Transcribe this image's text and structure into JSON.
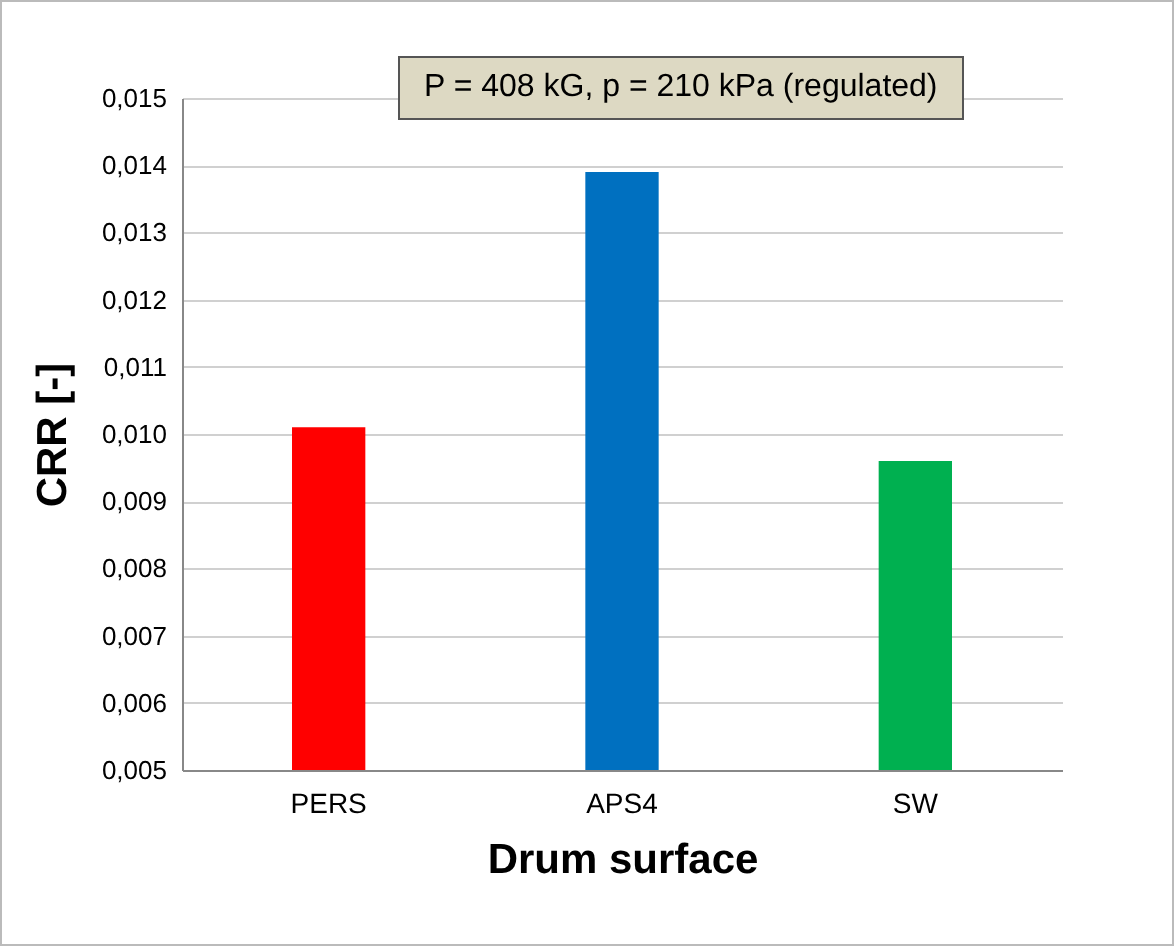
{
  "chart_data": {
    "type": "bar",
    "title": "P = 408 kG, p = 210 kPa (regulated)",
    "xlabel": "Drum surface",
    "ylabel": "CRR [-]",
    "categories": [
      "PERS",
      "APS4",
      "SW"
    ],
    "values": [
      0.0101,
      0.0139,
      0.0096
    ],
    "colors": [
      "#ff0000",
      "#0070c0",
      "#00b050"
    ],
    "ylim": [
      0.005,
      0.015
    ],
    "yticks": [
      {
        "value": 0.005,
        "label": "0,005"
      },
      {
        "value": 0.006,
        "label": "0,006"
      },
      {
        "value": 0.007,
        "label": "0,007"
      },
      {
        "value": 0.008,
        "label": "0,008"
      },
      {
        "value": 0.009,
        "label": "0,009"
      },
      {
        "value": 0.01,
        "label": "0,010"
      },
      {
        "value": 0.011,
        "label": "0,011"
      },
      {
        "value": 0.012,
        "label": "0,012"
      },
      {
        "value": 0.013,
        "label": "0,013"
      },
      {
        "value": 0.014,
        "label": "0,014"
      },
      {
        "value": 0.015,
        "label": "0,015"
      }
    ],
    "grid": "y"
  }
}
